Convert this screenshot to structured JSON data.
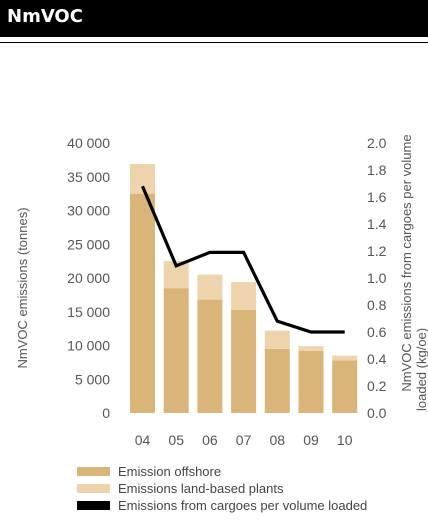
{
  "header": {
    "title": "NmVOC"
  },
  "chart_data": {
    "type": "bar",
    "categories": [
      "04",
      "05",
      "06",
      "07",
      "08",
      "09",
      "10"
    ],
    "series": [
      {
        "name": "Emission offshore",
        "kind": "bar-stacked",
        "axis": "left",
        "color": "#dab57a",
        "values": [
          32500,
          18500,
          16800,
          15300,
          9500,
          9200,
          7800
        ]
      },
      {
        "name": "Emissions land-based plants",
        "kind": "bar-stacked",
        "axis": "left",
        "color": "#eed4ac",
        "values": [
          4400,
          4000,
          3700,
          4100,
          2700,
          700,
          700
        ]
      },
      {
        "name": "Emissions from cargoes per volume loaded",
        "kind": "line",
        "axis": "right",
        "color": "#000000",
        "values": [
          1.68,
          1.09,
          1.19,
          1.19,
          0.68,
          0.6,
          0.6
        ]
      }
    ],
    "y_left": {
      "label": "NmVOC emissions (tonnes)",
      "range": [
        0,
        40000
      ],
      "ticks": [
        0,
        5000,
        10000,
        15000,
        20000,
        25000,
        30000,
        35000,
        40000
      ],
      "tick_labels": [
        "0",
        "5 000",
        "10 000",
        "15 000",
        "20 000",
        "25 000",
        "30 000",
        "35 000",
        "40 000"
      ]
    },
    "y_right": {
      "label_line1": "NmVOC emissions from cargoes per volume",
      "label_line2": "loaded (kg/oe)",
      "range": [
        0,
        2.0
      ],
      "ticks": [
        0,
        0.2,
        0.4,
        0.6,
        0.8,
        1.0,
        1.2,
        1.4,
        1.6,
        1.8,
        2.0
      ],
      "tick_labels": [
        "0.0",
        "0.2",
        "0.4",
        "0.6",
        "0.8",
        "1.0",
        "1.2",
        "1.4",
        "1.6",
        "1.8",
        "2.0"
      ]
    },
    "grid": false,
    "legend_position": "bottom-left"
  }
}
